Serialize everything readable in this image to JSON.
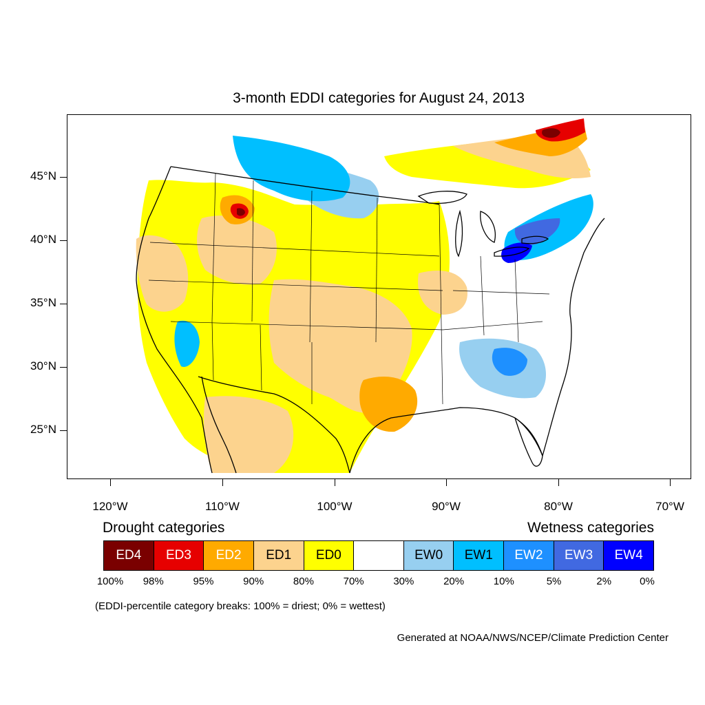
{
  "title": "3-month EDDI categories for August 24, 2013",
  "map": {
    "latitude_labels": [
      "45°N",
      "40°N",
      "35°N",
      "30°N",
      "25°N"
    ],
    "longitude_labels": [
      "120°W",
      "110°W",
      "100°W",
      "90°W",
      "80°W",
      "70°W"
    ]
  },
  "legend": {
    "drought_heading": "Drought categories",
    "wetness_heading": "Wetness categories",
    "categories": [
      {
        "label": "ED4",
        "color": "#7a0000",
        "text_color": "#ffffff"
      },
      {
        "label": "ED3",
        "color": "#e60000",
        "text_color": "#ffffff"
      },
      {
        "label": "ED2",
        "color": "#ffaa00",
        "text_color": "#ffffff"
      },
      {
        "label": "ED1",
        "color": "#fcd38e",
        "text_color": "#000000"
      },
      {
        "label": "ED0",
        "color": "#ffff00",
        "text_color": "#000000"
      },
      {
        "label": "",
        "color": "#ffffff",
        "text_color": "#000000"
      },
      {
        "label": "EW0",
        "color": "#97cff0",
        "text_color": "#000000"
      },
      {
        "label": "EW1",
        "color": "#00bfff",
        "text_color": "#000000"
      },
      {
        "label": "EW2",
        "color": "#1e90ff",
        "text_color": "#ffffff"
      },
      {
        "label": "EW3",
        "color": "#4169e1",
        "text_color": "#ffffff"
      },
      {
        "label": "EW4",
        "color": "#0000ff",
        "text_color": "#ffffff"
      }
    ],
    "percentiles": [
      "100%",
      "98%",
      "95%",
      "90%",
      "80%",
      "70%",
      "30%",
      "20%",
      "10%",
      "5%",
      "2%",
      "0%"
    ]
  },
  "note": "(EDDI-percentile category breaks: 100% = driest; 0% = wettest)",
  "credit": "Generated at NOAA/NWS/NCEP/Climate Prediction Center"
}
